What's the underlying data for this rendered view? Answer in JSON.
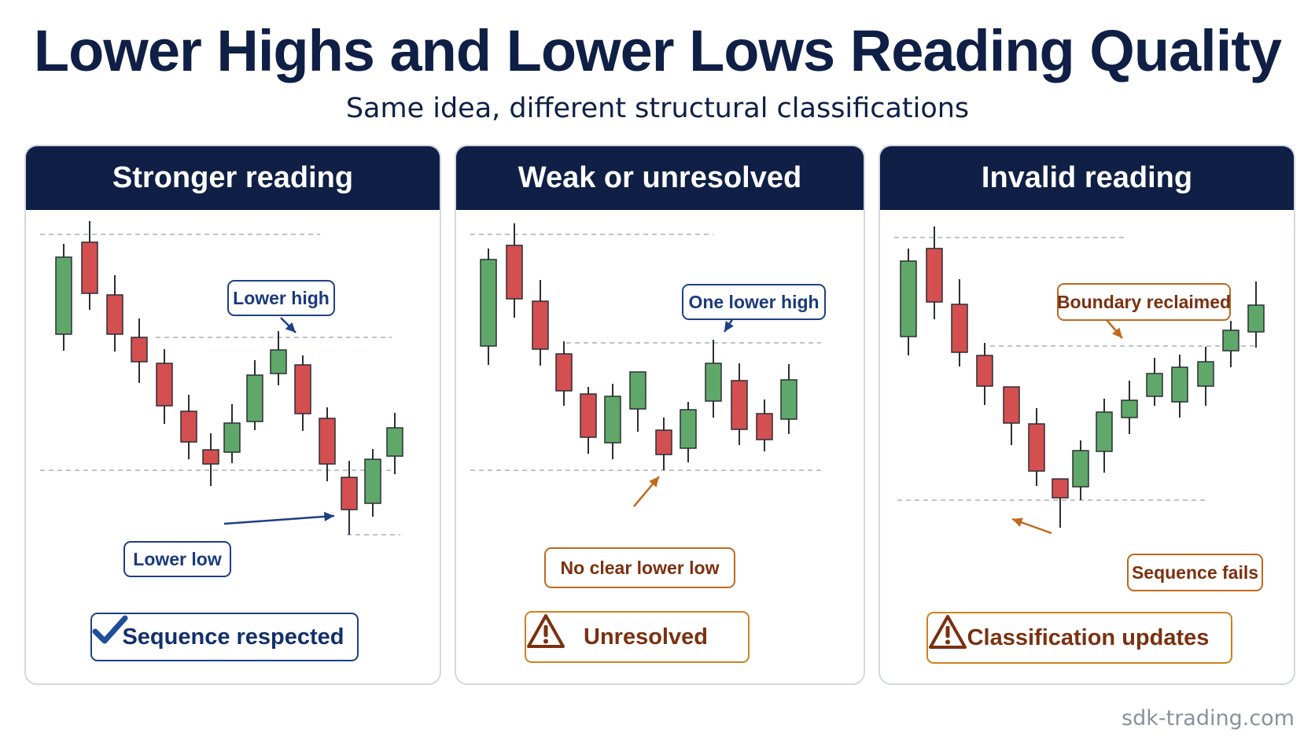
{
  "title": "Lower Highs and Lower Lows Reading Quality",
  "subtitle": "Same idea, different structural classifications",
  "colors": {
    "navy": "#0f1f45",
    "bullish": "#5fa869",
    "bearish": "#d44f4f",
    "callout_blue": "#1f3f86",
    "callout_orange": "#c0691c",
    "guide_line": "#a9b0bc"
  },
  "panels": [
    {
      "header": "Stronger reading",
      "callouts": [
        "Lower high",
        "Lower low"
      ],
      "status": {
        "icon": "check-icon",
        "label": "Sequence respected"
      }
    },
    {
      "header": "Weak or unresolved",
      "callouts": [
        "One lower high",
        "No clear lower low"
      ],
      "status": {
        "icon": "warning-icon",
        "label": "Unresolved"
      }
    },
    {
      "header": "Invalid reading",
      "callouts": [
        "Boundary reclaimed",
        "Sequence fails"
      ],
      "status": {
        "icon": "warning-icon",
        "label": "Classification updates"
      }
    }
  ],
  "footer": "sdk-trading.com"
}
